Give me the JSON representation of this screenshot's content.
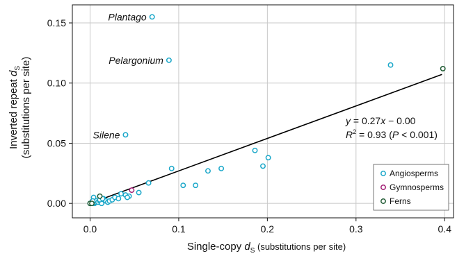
{
  "chart_data": {
    "type": "scatter",
    "xlabel": {
      "main": "Single-copy ",
      "var": "d",
      "sub": "S",
      "rest": " (substitutions per site)"
    },
    "ylabel": {
      "line1_main": "Inverted repeat ",
      "line1_var": "d",
      "line1_sub": "S",
      "line2": "(substitutions per site)"
    },
    "xlim": [
      -0.02,
      0.41
    ],
    "ylim": [
      -0.012,
      0.165
    ],
    "xticks": [
      0.0,
      0.1,
      0.2,
      0.3,
      0.4
    ],
    "xtick_labels": [
      "0.0",
      "0.1",
      "0.2",
      "0.3",
      "0.4"
    ],
    "yticks": [
      0.0,
      0.05,
      0.1,
      0.15
    ],
    "ytick_labels": [
      "0.00",
      "0.05",
      "0.10",
      "0.15"
    ],
    "grid": true,
    "legend_position": "bottom-right",
    "colors": {
      "Angiosperms": "#1aa7c9",
      "Gymnosperms": "#a01a72",
      "Ferns": "#1f5a33",
      "grid": "#c8c8c8",
      "fit": "#000000"
    },
    "series": [
      {
        "name": "Angiosperms",
        "x": [
          0.07,
          0.089,
          0.04,
          0.339,
          0.0,
          0.002,
          0.004,
          0.005,
          0.006,
          0.007,
          0.009,
          0.011,
          0.013,
          0.015,
          0.018,
          0.02,
          0.022,
          0.025,
          0.028,
          0.032,
          0.035,
          0.04,
          0.044,
          0.055,
          0.066,
          0.092,
          0.105,
          0.119,
          0.133,
          0.148,
          0.186,
          0.195,
          0.201,
          0.011,
          0.014,
          0.003,
          0.042
        ],
        "y": [
          0.155,
          0.119,
          0.057,
          0.115,
          0.0,
          0.001,
          0.005,
          0.0,
          0.001,
          0.002,
          0.001,
          0.002,
          0.0,
          0.004,
          0.002,
          0.001,
          0.002,
          0.003,
          0.005,
          0.004,
          0.008,
          0.007,
          0.006,
          0.009,
          0.017,
          0.029,
          0.015,
          0.015,
          0.027,
          0.029,
          0.044,
          0.031,
          0.038,
          0.003,
          0.004,
          0.002,
          0.005
        ]
      },
      {
        "name": "Gymnosperms",
        "x": [
          0.001,
          0.047
        ],
        "y": [
          0.0,
          0.011
        ]
      },
      {
        "name": "Ferns",
        "x": [
          0.398,
          0.0,
          0.011,
          0.002
        ],
        "y": [
          0.112,
          0.0,
          0.006,
          0.0
        ]
      }
    ],
    "fit": {
      "slope": 0.27,
      "intercept": 0.0,
      "x_range": [
        0.0,
        0.397
      ]
    },
    "annotations": [
      {
        "text": "Plantago",
        "x": 0.07,
        "y": 0.155
      },
      {
        "text": "Pelargonium",
        "x": 0.089,
        "y": 0.119
      },
      {
        "text": "Silene",
        "x": 0.04,
        "y": 0.057
      }
    ],
    "equation": {
      "line1": {
        "y": "y",
        "eq": " = 0.27",
        "x": "x",
        "rest": " − 0.00"
      },
      "line2": {
        "r": "R",
        "sup": "2",
        "eq": " = 0.93 (",
        "p": "P",
        "rest": " < 0.001)"
      }
    },
    "legend": [
      "Angiosperms",
      "Gymnosperms",
      "Ferns"
    ]
  }
}
